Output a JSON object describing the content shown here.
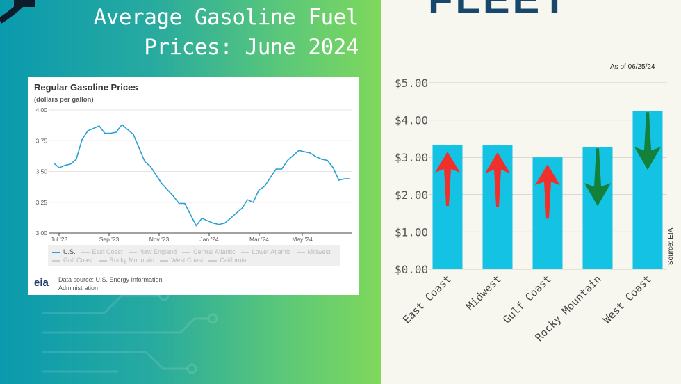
{
  "headline": [
    "Average Gasoline Fuel",
    "Prices: June 2024"
  ],
  "brand": "FLEET",
  "eia_card": {
    "title": "Regular Gasoline Prices",
    "subtitle": "(dollars per gallon)",
    "logo": "eia",
    "source_text": "Data source: U.S. Energy Information Administration",
    "legend": [
      "U.S.",
      "East Coast",
      "New England",
      "Central Atlantic",
      "Lower Atlantic",
      "Midwest",
      "Gulf Coast",
      "Rocky Mountain",
      "West Coast",
      "California"
    ]
  },
  "as_of": "As of 06/25/24",
  "source": "Source: EIA",
  "colors": {
    "line": "#2a9fd6",
    "bar": "#14c2e4",
    "up": "#f0302a",
    "down": "#13813a",
    "brand": "#17476b"
  },
  "chart_data": [
    {
      "type": "line",
      "title": "Regular Gasoline Prices",
      "ylabel": "(dollars per gallon)",
      "ylim": [
        3.0,
        4.0
      ],
      "yticks": [
        "4.00",
        "3.75",
        "3.50",
        "3.25",
        "3.00"
      ],
      "xticks": [
        "Jul '23",
        "Sep '23",
        "Nov '23",
        "Jan '24",
        "Mar '24",
        "May '24"
      ],
      "grid": true,
      "legend_position": "bottom",
      "series": [
        {
          "name": "U.S.",
          "values": [
            3.57,
            3.53,
            3.55,
            3.56,
            3.6,
            3.76,
            3.83,
            3.85,
            3.87,
            3.81,
            3.81,
            3.82,
            3.88,
            3.84,
            3.8,
            3.69,
            3.58,
            3.54,
            3.47,
            3.4,
            3.35,
            3.3,
            3.24,
            3.24,
            3.15,
            3.06,
            3.12,
            3.1,
            3.08,
            3.07,
            3.08,
            3.12,
            3.16,
            3.2,
            3.27,
            3.25,
            3.35,
            3.38,
            3.45,
            3.52,
            3.52,
            3.59,
            3.63,
            3.67,
            3.66,
            3.65,
            3.62,
            3.6,
            3.59,
            3.53,
            3.43,
            3.44,
            3.44
          ]
        }
      ]
    },
    {
      "type": "bar",
      "categories": [
        "East Coast",
        "Midwest",
        "Gulf Coast",
        "Rocky Mountain",
        "West Coast"
      ],
      "values": [
        3.34,
        3.32,
        3.0,
        3.28,
        4.25
      ],
      "trend": [
        "up",
        "up",
        "up",
        "down",
        "down"
      ],
      "ylim": [
        0,
        5
      ],
      "yticks": [
        "$0.00",
        "$1.00",
        "$2.00",
        "$3.00",
        "$4.00",
        "$5.00"
      ],
      "grid": true
    }
  ]
}
